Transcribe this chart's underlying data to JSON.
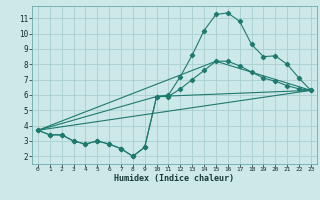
{
  "title": "",
  "xlabel": "Humidex (Indice chaleur)",
  "xlim": [
    -0.5,
    23.5
  ],
  "ylim": [
    1.5,
    11.8
  ],
  "xticks": [
    0,
    1,
    2,
    3,
    4,
    5,
    6,
    7,
    8,
    9,
    10,
    11,
    12,
    13,
    14,
    15,
    16,
    17,
    18,
    19,
    20,
    21,
    22,
    23
  ],
  "yticks": [
    2,
    3,
    4,
    5,
    6,
    7,
    8,
    9,
    10,
    11
  ],
  "bg_color": "#cce8e8",
  "grid_color": "#aacfcf",
  "line_color": "#1e7a6e",
  "line1_x": [
    0,
    1,
    2,
    3,
    4,
    5,
    6,
    7,
    8,
    9,
    10,
    11,
    12,
    13,
    14,
    15,
    16,
    17,
    18,
    19,
    20,
    21,
    22,
    23
  ],
  "line1_y": [
    3.7,
    3.4,
    3.4,
    3.0,
    2.8,
    3.0,
    2.8,
    2.5,
    2.0,
    2.6,
    5.9,
    6.0,
    7.2,
    8.6,
    10.2,
    11.25,
    11.35,
    10.8,
    9.3,
    8.5,
    8.55,
    8.0,
    7.1,
    6.3
  ],
  "line2_x": [
    0,
    1,
    2,
    3,
    4,
    5,
    6,
    7,
    8,
    9,
    10,
    11,
    12,
    13,
    14,
    15,
    16,
    17,
    18,
    19,
    20,
    21,
    22,
    23
  ],
  "line2_y": [
    3.7,
    3.4,
    3.4,
    3.0,
    2.8,
    3.0,
    2.8,
    2.5,
    2.0,
    2.6,
    5.9,
    5.9,
    6.4,
    7.0,
    7.6,
    8.2,
    8.2,
    7.9,
    7.5,
    7.1,
    6.9,
    6.6,
    6.4,
    6.3
  ],
  "line3_x": [
    0,
    23
  ],
  "line3_y": [
    3.7,
    6.3
  ],
  "line4_x": [
    0,
    10,
    23
  ],
  "line4_y": [
    3.7,
    5.9,
    6.3
  ],
  "line5_x": [
    0,
    15,
    23
  ],
  "line5_y": [
    3.7,
    8.2,
    6.3
  ]
}
